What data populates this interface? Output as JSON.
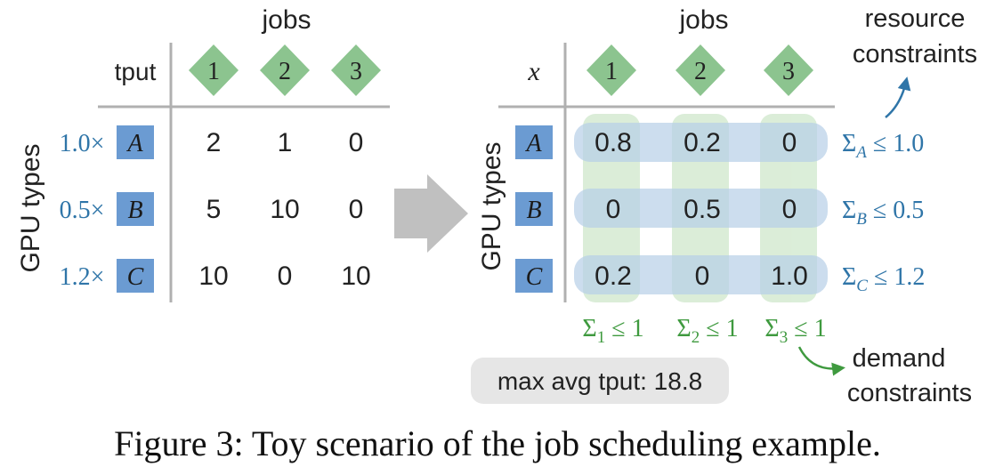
{
  "left_table": {
    "jobs_label": "jobs",
    "corner_label": "tput",
    "job_labels": [
      "1",
      "2",
      "3"
    ],
    "gpu_axis_label": "GPU types",
    "gpu_labels": [
      "A",
      "B",
      "C"
    ],
    "multipliers": [
      "1.0×",
      "0.5×",
      "1.2×"
    ],
    "values": [
      [
        "2",
        "1",
        "0"
      ],
      [
        "5",
        "10",
        "0"
      ],
      [
        "10",
        "0",
        "10"
      ]
    ]
  },
  "right_table": {
    "jobs_label": "jobs",
    "corner_label": "x",
    "job_labels": [
      "1",
      "2",
      "3"
    ],
    "gpu_axis_label": "GPU types",
    "gpu_labels": [
      "A",
      "B",
      "C"
    ],
    "values": [
      [
        "0.8",
        "0.2",
        "0"
      ],
      [
        "0",
        "0.5",
        "0"
      ],
      [
        "0.2",
        "0",
        "1.0"
      ]
    ],
    "row_constraints": [
      {
        "sigma": "Σ",
        "sub": "A",
        "rest": " ≤ 1.0"
      },
      {
        "sigma": "Σ",
        "sub": "B",
        "rest": " ≤ 0.5"
      },
      {
        "sigma": "Σ",
        "sub": "C",
        "rest": " ≤ 1.2"
      }
    ],
    "col_constraints": [
      {
        "sigma": "Σ",
        "sub": "1",
        "rest": " ≤ 1"
      },
      {
        "sigma": "Σ",
        "sub": "2",
        "rest": " ≤ 1"
      },
      {
        "sigma": "Σ",
        "sub": "3",
        "rest": " ≤ 1"
      }
    ],
    "resource_label_line1": "resource",
    "resource_label_line2": "constraints",
    "demand_label_line1": "demand",
    "demand_label_line2": "constraints",
    "result_badge": "max avg tput: 18.8"
  },
  "caption": "Figure 3: Toy scenario of the job scheduling example.",
  "colors": {
    "diamond": "#8cc48f",
    "gpu_box": "#6b9bd2",
    "blue_text": "#2f75a8",
    "green_text": "#3f9a3f",
    "row_band": "#c9dcee",
    "col_band": "#cfe8cc",
    "arrow": "#c0c0c0",
    "badge": "#e6e6e6"
  }
}
